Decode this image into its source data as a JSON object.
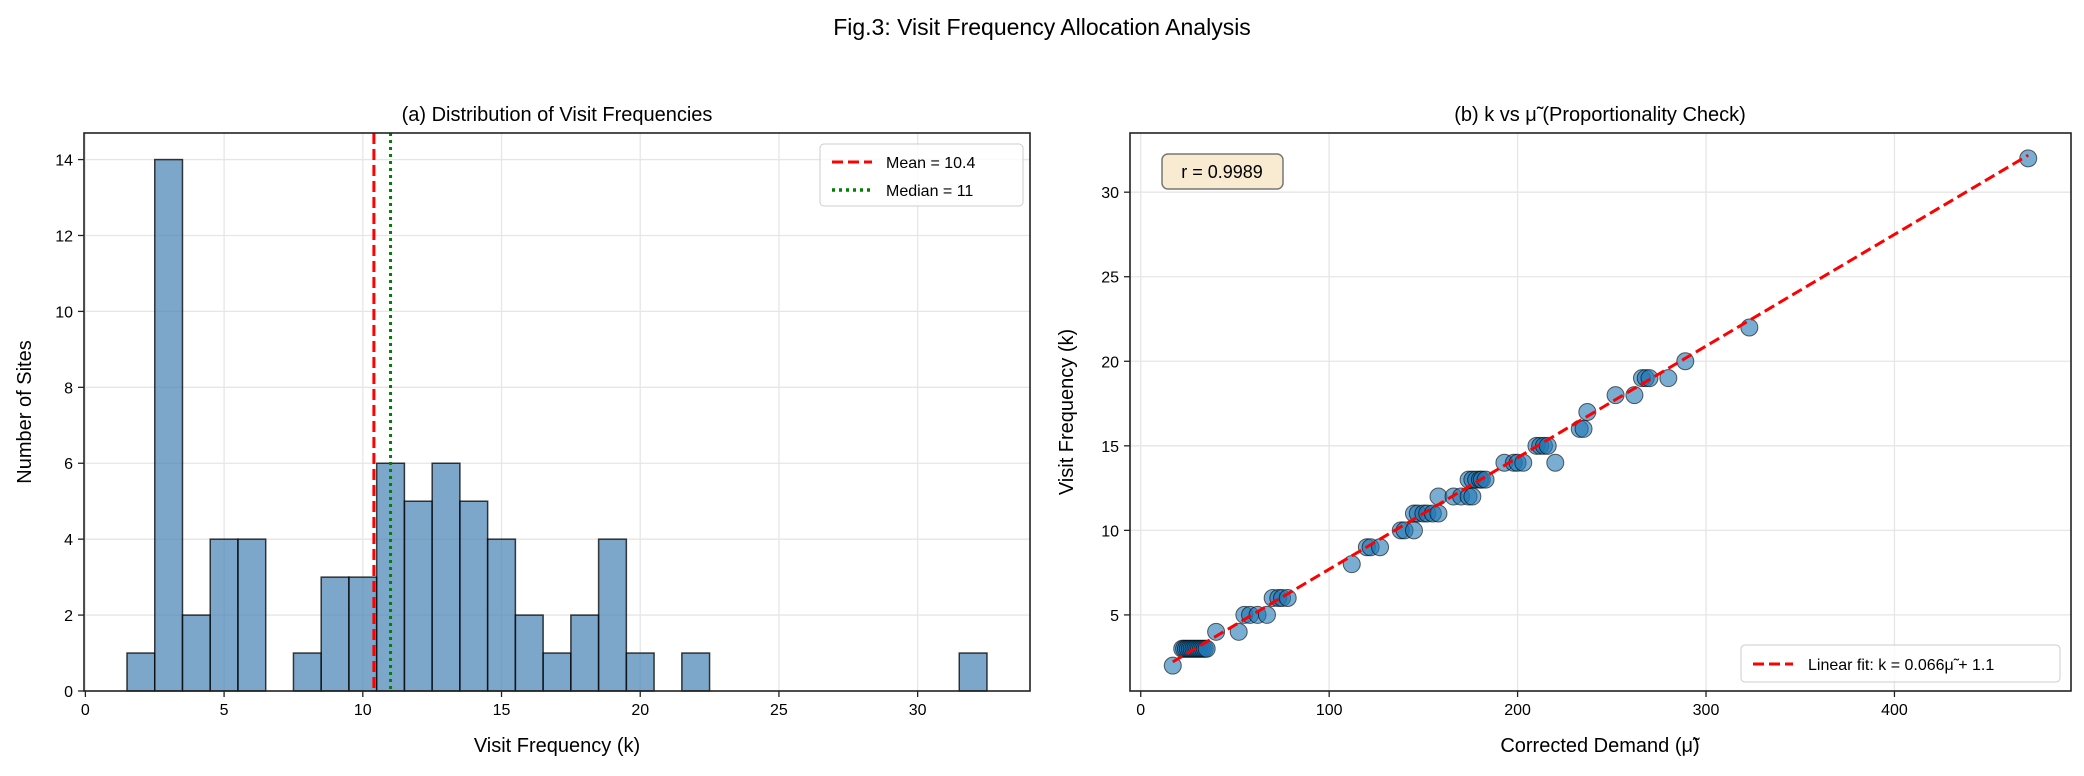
{
  "figure_title": "Fig.3: Visit Frequency Allocation Analysis",
  "colors": {
    "bar": "#4682b4",
    "scatter": "#1f77b4",
    "mean_line": "#ff0000",
    "median_line": "#008000",
    "fit_line": "#ff0000",
    "annotation_box": "#f5deb3"
  },
  "chart_data": [
    {
      "type": "bar",
      "subtype": "histogram",
      "title": "(a) Distribution of Visit Frequencies",
      "xlabel": "Visit Frequency (k)",
      "ylabel": "Number of Sites",
      "bin_edges_start": 1.5,
      "bin_width": 1,
      "counts": [
        1,
        14,
        2,
        4,
        4,
        0,
        1,
        3,
        3,
        6,
        5,
        6,
        5,
        4,
        2,
        1,
        2,
        4,
        1,
        0,
        1,
        0,
        0,
        0,
        0,
        0,
        0,
        0,
        0,
        0,
        1
      ],
      "xlim": [
        -0.05,
        34.05
      ],
      "ylim": [
        0,
        14.7
      ],
      "xticks": [
        0,
        5,
        10,
        15,
        20,
        25,
        30
      ],
      "yticks": [
        0,
        2,
        4,
        6,
        8,
        10,
        12,
        14
      ],
      "grid": true,
      "reference_lines": [
        {
          "name": "Mean = 10.4",
          "value": 10.4,
          "style": "dashed",
          "color": "#ff0000"
        },
        {
          "name": "Median = 11",
          "value": 11,
          "style": "dotted",
          "color": "#008000"
        }
      ],
      "legend_position": "top-right"
    },
    {
      "type": "scatter",
      "title": "(b) k vs μ̃ (Proportionality Check)",
      "xlabel": "Corrected Demand (μ̃)",
      "ylabel": "Visit Frequency (k)",
      "xlim": [
        -5.7,
        493.7
      ],
      "ylim": [
        0.5,
        33.5
      ],
      "xticks": [
        0,
        100,
        200,
        300,
        400
      ],
      "yticks": [
        5,
        10,
        15,
        20,
        25,
        30
      ],
      "grid": true,
      "annotation": "r = 0.9989",
      "points": [
        [
          17,
          2
        ],
        [
          22,
          3
        ],
        [
          23,
          3
        ],
        [
          24,
          3
        ],
        [
          25,
          3
        ],
        [
          26,
          3
        ],
        [
          27,
          3
        ],
        [
          28,
          3
        ],
        [
          29,
          3
        ],
        [
          30,
          3
        ],
        [
          31,
          3
        ],
        [
          32,
          3
        ],
        [
          33,
          3
        ],
        [
          34,
          3
        ],
        [
          35,
          3
        ],
        [
          40,
          4
        ],
        [
          52,
          4
        ],
        [
          55,
          5
        ],
        [
          58,
          5
        ],
        [
          62,
          5
        ],
        [
          67,
          5
        ],
        [
          70,
          6
        ],
        [
          73,
          6
        ],
        [
          75,
          6
        ],
        [
          78,
          6
        ],
        [
          112,
          8
        ],
        [
          120,
          9
        ],
        [
          122,
          9
        ],
        [
          127,
          9
        ],
        [
          138,
          10
        ],
        [
          140,
          10
        ],
        [
          145,
          10
        ],
        [
          145,
          11
        ],
        [
          147,
          11
        ],
        [
          150,
          11
        ],
        [
          152,
          11
        ],
        [
          155,
          11
        ],
        [
          158,
          11
        ],
        [
          158,
          12
        ],
        [
          166,
          12
        ],
        [
          170,
          12
        ],
        [
          174,
          12
        ],
        [
          176,
          12
        ],
        [
          174,
          13
        ],
        [
          176,
          13
        ],
        [
          178,
          13
        ],
        [
          180,
          13
        ],
        [
          181,
          13
        ],
        [
          183,
          13
        ],
        [
          193,
          14
        ],
        [
          198,
          14
        ],
        [
          200,
          14
        ],
        [
          203,
          14
        ],
        [
          220,
          14
        ],
        [
          210,
          15
        ],
        [
          212,
          15
        ],
        [
          214,
          15
        ],
        [
          216,
          15
        ],
        [
          233,
          16
        ],
        [
          235,
          16
        ],
        [
          237,
          17
        ],
        [
          252,
          18
        ],
        [
          262,
          18
        ],
        [
          266,
          19
        ],
        [
          268,
          19
        ],
        [
          270,
          19
        ],
        [
          280,
          19
        ],
        [
          289,
          20
        ],
        [
          323,
          22
        ],
        [
          471,
          32
        ]
      ],
      "fit": {
        "name": "Linear fit: k = 0.066μ̃ + 1.1",
        "slope": 0.066,
        "intercept": 1.1,
        "x_range": [
          17,
          471
        ]
      },
      "legend_position": "bottom-right"
    }
  ]
}
